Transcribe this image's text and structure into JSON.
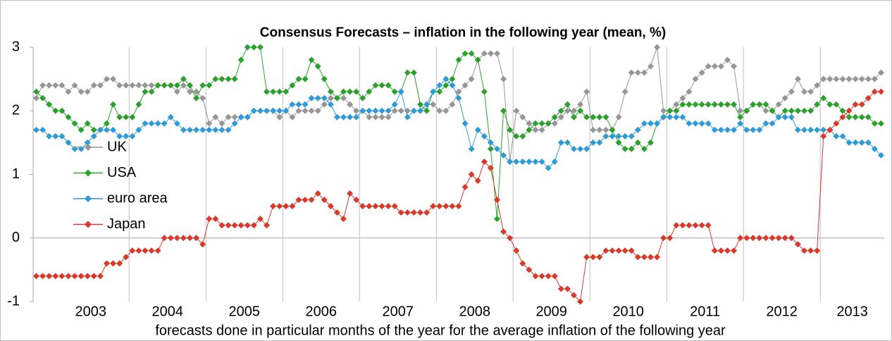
{
  "chart_data": {
    "type": "line",
    "title": "Consensus Forecasts – inflation in the following year (mean, %)",
    "x_label": "forecasts done in particular months of the year for the average inflation of the following year",
    "categories": [
      null,
      null,
      null,
      "2003",
      null,
      null,
      null,
      null,
      null,
      null,
      null,
      null,
      null,
      null,
      null,
      "2004",
      null,
      null,
      null,
      null,
      null,
      null,
      null,
      null,
      null,
      null,
      null,
      "2005",
      null,
      null,
      null,
      null,
      null,
      null,
      null,
      null,
      null,
      null,
      null,
      "2006",
      null,
      null,
      null,
      null,
      null,
      null,
      null,
      null,
      null,
      null,
      null,
      "2007",
      null,
      null,
      null,
      null,
      null,
      null,
      null,
      null,
      null,
      null,
      null,
      "2008",
      null,
      null,
      null,
      null,
      null,
      null,
      null,
      null,
      null,
      null,
      null,
      "2009",
      null,
      null,
      null,
      null,
      null,
      null,
      null,
      null,
      null,
      null,
      null,
      "2010",
      null,
      null,
      null,
      null,
      null,
      null,
      null,
      null,
      null,
      null,
      null,
      "2011",
      null,
      null,
      null,
      null,
      null,
      null,
      null,
      null,
      null,
      null,
      null,
      "2012",
      null,
      null,
      null,
      null,
      null,
      null,
      null,
      null,
      null,
      null,
      null,
      "2013",
      null,
      null,
      null,
      null,
      null,
      null,
      null,
      null,
      null
    ],
    "ylim": [
      -1,
      3
    ],
    "yticks": [
      -1,
      0,
      1,
      2,
      3
    ],
    "series": [
      {
        "name": "UK",
        "color": "#969696",
        "values": [
          2.2,
          2.4,
          2.4,
          2.4,
          2.4,
          2.3,
          2.4,
          2.3,
          2.3,
          2.4,
          2.4,
          2.5,
          2.5,
          2.4,
          2.4,
          2.4,
          2.4,
          2.4,
          2.4,
          2.4,
          2.4,
          2.4,
          2.3,
          2.4,
          2.3,
          2.3,
          2.2,
          1.8,
          1.9,
          1.8,
          1.9,
          1.9,
          1.9,
          1.9,
          2.0,
          2.0,
          2.0,
          2.0,
          1.9,
          2.0,
          1.9,
          2.0,
          2.0,
          2.0,
          2.0,
          2.1,
          2.2,
          2.2,
          2.2,
          2.1,
          2.0,
          2.0,
          1.9,
          1.9,
          1.9,
          1.9,
          2.0,
          2.0,
          2.0,
          2.0,
          2.0,
          2.1,
          2.1,
          2.0,
          2.0,
          2.1,
          2.3,
          2.4,
          2.5,
          2.8,
          2.9,
          2.9,
          2.9,
          2.5,
          1.2,
          2.0,
          1.9,
          1.8,
          1.7,
          1.7,
          1.8,
          1.8,
          1.9,
          2.0,
          2.0,
          2.1,
          2.3,
          1.7,
          1.7,
          1.7,
          1.7,
          1.9,
          2.3,
          2.6,
          2.6,
          2.6,
          2.7,
          3.0,
          2.0,
          2.0,
          2.1,
          2.2,
          2.3,
          2.5,
          2.6,
          2.7,
          2.7,
          2.7,
          2.8,
          2.7,
          2.0,
          2.0,
          2.1,
          2.1,
          2.0,
          2.0,
          2.1,
          2.2,
          2.3,
          2.5,
          2.3,
          2.3,
          2.4,
          2.5,
          2.5,
          2.5,
          2.5,
          2.5,
          2.5,
          2.5,
          2.5,
          2.5,
          2.6
        ]
      },
      {
        "name": "USA",
        "color": "#2ca02c",
        "values": [
          2.3,
          2.2,
          2.1,
          2.0,
          2.0,
          1.9,
          1.8,
          1.7,
          1.8,
          1.7,
          1.7,
          1.8,
          2.1,
          1.9,
          1.9,
          1.9,
          2.1,
          2.3,
          2.3,
          2.4,
          2.4,
          2.4,
          2.4,
          2.5,
          2.4,
          2.2,
          2.4,
          2.4,
          2.5,
          2.5,
          2.5,
          2.5,
          2.8,
          3.0,
          3.0,
          3.0,
          2.3,
          2.3,
          2.3,
          2.3,
          2.4,
          2.5,
          2.5,
          2.8,
          2.7,
          2.5,
          2.3,
          2.2,
          2.3,
          2.3,
          2.3,
          2.2,
          2.3,
          2.4,
          2.4,
          2.4,
          2.3,
          2.3,
          2.6,
          2.6,
          2.1,
          2.0,
          2.3,
          2.3,
          2.4,
          2.5,
          2.8,
          2.9,
          2.9,
          2.8,
          2.3,
          1.4,
          0.3,
          2.0,
          1.7,
          1.6,
          1.6,
          1.7,
          1.8,
          1.8,
          1.8,
          1.9,
          2.0,
          2.1,
          1.9,
          2.0,
          1.9,
          1.9,
          1.9,
          1.9,
          1.7,
          1.5,
          1.4,
          1.4,
          1.5,
          1.4,
          1.5,
          1.8,
          1.9,
          2.0,
          2.0,
          2.1,
          2.1,
          2.1,
          2.1,
          2.1,
          2.1,
          2.1,
          2.1,
          2.1,
          1.9,
          2.0,
          2.1,
          2.1,
          2.1,
          2.0,
          1.9,
          2.0,
          2.0,
          2.0,
          2.0,
          2.0,
          2.1,
          2.2,
          2.1,
          2.1,
          2.0,
          1.9,
          1.9,
          1.9,
          1.9,
          1.8,
          1.8
        ]
      },
      {
        "name": "euro area",
        "color": "#2e9bd6",
        "values": [
          1.7,
          1.7,
          1.6,
          1.6,
          1.6,
          1.5,
          1.4,
          1.4,
          1.5,
          1.6,
          1.7,
          1.7,
          1.7,
          1.6,
          1.6,
          1.6,
          1.7,
          1.8,
          1.8,
          1.8,
          1.8,
          1.9,
          1.8,
          1.7,
          1.7,
          1.7,
          1.7,
          1.7,
          1.7,
          1.7,
          1.7,
          1.8,
          1.9,
          1.9,
          2.0,
          2.0,
          2.0,
          2.0,
          2.0,
          2.0,
          2.1,
          2.1,
          2.1,
          2.2,
          2.2,
          2.2,
          2.1,
          1.9,
          1.9,
          1.9,
          1.9,
          2.0,
          2.0,
          2.0,
          2.0,
          2.0,
          2.1,
          2.3,
          1.9,
          2.0,
          2.0,
          2.1,
          2.3,
          2.4,
          2.5,
          2.4,
          2.2,
          1.8,
          1.4,
          1.7,
          1.6,
          1.5,
          1.4,
          1.3,
          1.2,
          1.2,
          1.2,
          1.2,
          1.2,
          1.2,
          1.1,
          1.2,
          1.5,
          1.5,
          1.4,
          1.4,
          1.4,
          1.5,
          1.5,
          1.6,
          1.6,
          1.6,
          1.6,
          1.6,
          1.7,
          1.8,
          1.8,
          1.8,
          1.9,
          1.9,
          1.9,
          1.9,
          1.8,
          1.8,
          1.8,
          1.8,
          1.7,
          1.7,
          1.7,
          1.7,
          1.8,
          1.7,
          1.7,
          1.7,
          1.8,
          1.8,
          1.9,
          1.9,
          1.9,
          1.7,
          1.7,
          1.7,
          1.7,
          1.7,
          1.7,
          1.6,
          1.6,
          1.5,
          1.5,
          1.5,
          1.5,
          1.4,
          1.3
        ]
      },
      {
        "name": "Japan",
        "color": "#d7392b",
        "values": [
          -0.6,
          -0.6,
          -0.6,
          -0.6,
          -0.6,
          -0.6,
          -0.6,
          -0.6,
          -0.6,
          -0.6,
          -0.6,
          -0.4,
          -0.4,
          -0.4,
          -0.3,
          -0.2,
          -0.2,
          -0.2,
          -0.2,
          -0.2,
          0.0,
          0.0,
          0.0,
          0.0,
          0.0,
          0.0,
          -0.1,
          0.3,
          0.3,
          0.2,
          0.2,
          0.2,
          0.2,
          0.2,
          0.2,
          0.3,
          0.2,
          0.5,
          0.5,
          0.5,
          0.5,
          0.6,
          0.6,
          0.6,
          0.7,
          0.6,
          0.5,
          0.4,
          0.3,
          0.7,
          0.6,
          0.5,
          0.5,
          0.5,
          0.5,
          0.5,
          0.5,
          0.4,
          0.4,
          0.4,
          0.4,
          0.4,
          0.5,
          0.5,
          0.5,
          0.5,
          0.5,
          0.8,
          1.0,
          0.9,
          1.2,
          1.1,
          0.6,
          0.1,
          0.0,
          -0.2,
          -0.4,
          -0.5,
          -0.6,
          -0.6,
          -0.6,
          -0.6,
          -0.8,
          -0.8,
          -0.9,
          -1.0,
          -0.3,
          -0.3,
          -0.3,
          -0.2,
          -0.2,
          -0.2,
          -0.2,
          -0.2,
          -0.3,
          -0.3,
          -0.3,
          -0.3,
          0.0,
          0.0,
          0.2,
          0.2,
          0.2,
          0.2,
          0.2,
          0.2,
          -0.2,
          -0.2,
          -0.2,
          -0.2,
          0.0,
          0.0,
          0.0,
          0.0,
          0.0,
          0.0,
          0.0,
          0.0,
          0.0,
          -0.1,
          -0.2,
          -0.2,
          -0.2,
          1.6,
          1.7,
          1.8,
          1.9,
          2.0,
          2.1,
          2.1,
          2.2,
          2.3,
          2.3
        ]
      }
    ]
  }
}
